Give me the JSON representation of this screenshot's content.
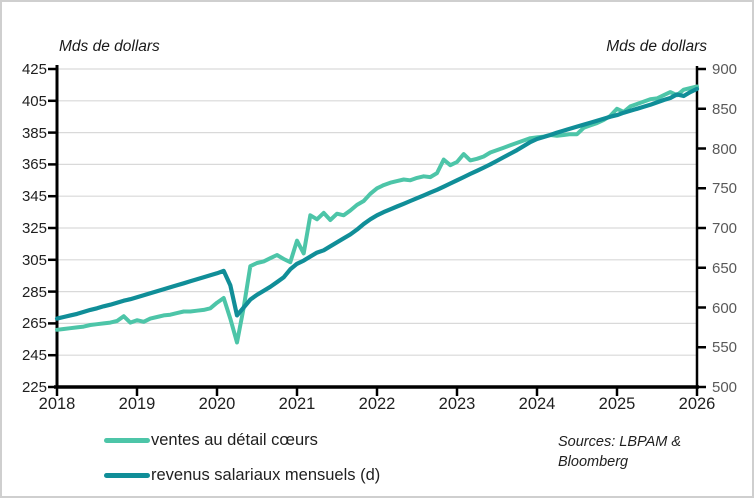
{
  "sources": {
    "text": "Sources: LBPAM & Bloomberg"
  },
  "colors": {
    "ventes_line": "#4DC5A8",
    "revenus_line": "#108E98",
    "gridline": "#D9D9D9",
    "axis": "#000000",
    "right_tick_label": "#595959",
    "left_tick_label": "#1F1F1F"
  },
  "chart_data": {
    "type": "line",
    "title": "",
    "grid": true,
    "legend_position": "bottom-left",
    "left_axis": {
      "label": "Mds de dollars",
      "min": 225,
      "max": 425,
      "step": 20,
      "ticks": [
        225,
        245,
        265,
        285,
        305,
        325,
        345,
        365,
        385,
        405,
        425
      ]
    },
    "right_axis": {
      "label": "Mds de dollars",
      "min": 500,
      "max": 900,
      "step": 50,
      "ticks": [
        500,
        550,
        600,
        650,
        700,
        750,
        800,
        850,
        900
      ]
    },
    "x_axis": {
      "start_year": 2018,
      "end_year": 2026,
      "ticks": [
        "2018",
        "2019",
        "2020",
        "2021",
        "2022",
        "2023",
        "2024",
        "2025",
        "2026"
      ]
    },
    "series": [
      {
        "name": "ventes au détail cœurs",
        "axis": "left",
        "color": "#4DC5A8",
        "start": "2018-01",
        "freq": "monthly",
        "values": [
          261,
          261.5,
          262,
          262.5,
          263,
          264,
          264.5,
          265,
          265.5,
          266.5,
          269.5,
          265.5,
          267,
          266,
          268,
          269,
          270,
          270.5,
          271.5,
          272.5,
          272.5,
          273,
          273.5,
          274.5,
          278,
          281,
          268,
          253,
          275,
          301,
          303,
          304,
          306,
          308,
          305.5,
          303.5,
          317,
          309,
          333,
          330.5,
          334.5,
          330,
          334,
          333,
          336,
          339.5,
          342,
          346.5,
          350,
          352,
          353.5,
          354.5,
          355.5,
          355,
          356.5,
          357.5,
          357,
          359.5,
          368,
          364.5,
          366.5,
          371.5,
          367.5,
          368.5,
          370,
          372.5,
          374,
          375.5,
          377,
          378.5,
          380,
          381.5,
          382,
          382.5,
          383.5,
          383,
          383.5,
          384,
          384,
          388,
          389.5,
          391,
          393,
          395.5,
          400,
          398,
          401.5,
          403,
          404.5,
          406,
          406.5,
          408.5,
          410.5,
          408.5,
          412,
          413,
          414
        ]
      },
      {
        "name": "revenus salariaux mensuels (d)",
        "axis": "right",
        "color": "#108E98",
        "start": "2018-01",
        "freq": "monthly",
        "values": [
          586,
          588,
          590,
          592,
          594.5,
          597,
          599,
          601.5,
          603.5,
          606,
          608.5,
          610.5,
          613,
          615.5,
          618,
          620.5,
          623,
          625.5,
          628,
          630.5,
          633,
          635.5,
          638,
          640.5,
          643,
          646,
          628,
          590,
          600,
          610,
          616,
          621,
          626,
          632,
          638,
          648,
          655,
          659,
          664,
          669,
          672,
          677,
          682,
          687,
          692,
          698,
          705,
          711,
          716,
          720,
          723.5,
          727,
          730.5,
          734,
          737.5,
          741,
          744.5,
          748,
          752,
          756,
          760,
          764,
          768,
          772,
          776,
          780,
          784.5,
          789,
          793.5,
          798,
          803,
          808,
          812,
          814.5,
          817,
          820,
          822.5,
          825,
          827.5,
          830,
          832.5,
          835,
          837.5,
          840,
          842,
          845,
          847.5,
          850,
          852.5,
          855,
          858,
          861,
          863.5,
          868,
          866,
          871,
          875
        ]
      }
    ]
  }
}
